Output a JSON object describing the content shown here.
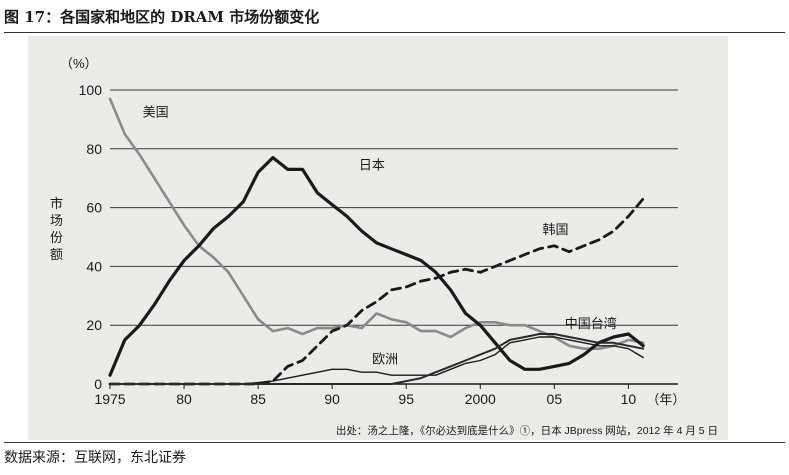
{
  "header": {
    "title": "图 17：各国家和地区的 DRAM 市场份额变化"
  },
  "footer": {
    "source": "数据来源：互联网，东北证券"
  },
  "chart_data": {
    "type": "line",
    "title": "",
    "ylabel": "市场份额",
    "yunit": "（%）",
    "xunit": "（年）",
    "ylim": [
      0,
      100
    ],
    "xlim": [
      1975,
      2012
    ],
    "yticks": [
      0,
      20,
      40,
      60,
      80,
      100
    ],
    "xticks": [
      {
        "value": 1975,
        "label": "1975"
      },
      {
        "value": 1980,
        "label": "80"
      },
      {
        "value": 1985,
        "label": "85"
      },
      {
        "value": 1990,
        "label": "90"
      },
      {
        "value": 1995,
        "label": "95"
      },
      {
        "value": 2000,
        "label": "2000"
      },
      {
        "value": 2005,
        "label": "05"
      },
      {
        "value": 2010,
        "label": "10"
      }
    ],
    "grid": true,
    "note": "出处：汤之上隆，《尔必达到底是什么》①，日本 JBpress 网站，2012 年 4 月 5 日",
    "series": [
      {
        "name": "美国",
        "style": "gray",
        "color": "#8a8a8a",
        "points": [
          [
            1975,
            97
          ],
          [
            1976,
            85
          ],
          [
            1977,
            78
          ],
          [
            1978,
            70
          ],
          [
            1979,
            62
          ],
          [
            1980,
            54
          ],
          [
            1981,
            47
          ],
          [
            1982,
            43
          ],
          [
            1983,
            38
          ],
          [
            1984,
            30
          ],
          [
            1985,
            22
          ],
          [
            1986,
            18
          ],
          [
            1987,
            19
          ],
          [
            1988,
            17
          ],
          [
            1989,
            19
          ],
          [
            1990,
            19
          ],
          [
            1991,
            20
          ],
          [
            1992,
            19
          ],
          [
            1993,
            24
          ],
          [
            1994,
            22
          ],
          [
            1995,
            21
          ],
          [
            1996,
            18
          ],
          [
            1997,
            18
          ],
          [
            1998,
            16
          ],
          [
            1999,
            19
          ],
          [
            2000,
            21
          ],
          [
            2001,
            21
          ],
          [
            2002,
            20
          ],
          [
            2003,
            20
          ],
          [
            2004,
            18
          ],
          [
            2005,
            16
          ],
          [
            2006,
            13
          ],
          [
            2007,
            12
          ],
          [
            2008,
            12
          ],
          [
            2009,
            13
          ],
          [
            2010,
            15
          ],
          [
            2011,
            14
          ]
        ]
      },
      {
        "name": "日本",
        "style": "thick",
        "color": "#1a1a1a",
        "points": [
          [
            1975,
            3
          ],
          [
            1976,
            15
          ],
          [
            1977,
            20
          ],
          [
            1978,
            27
          ],
          [
            1979,
            35
          ],
          [
            1980,
            42
          ],
          [
            1981,
            47
          ],
          [
            1982,
            53
          ],
          [
            1983,
            57
          ],
          [
            1984,
            62
          ],
          [
            1985,
            72
          ],
          [
            1986,
            77
          ],
          [
            1987,
            73
          ],
          [
            1988,
            73
          ],
          [
            1989,
            65
          ],
          [
            1990,
            61
          ],
          [
            1991,
            57
          ],
          [
            1992,
            52
          ],
          [
            1993,
            48
          ],
          [
            1994,
            46
          ],
          [
            1995,
            44
          ],
          [
            1996,
            42
          ],
          [
            1997,
            38
          ],
          [
            1998,
            32
          ],
          [
            1999,
            24
          ],
          [
            2000,
            20
          ],
          [
            2001,
            14
          ],
          [
            2002,
            8
          ],
          [
            2003,
            5
          ],
          [
            2004,
            5
          ],
          [
            2005,
            6
          ],
          [
            2006,
            7
          ],
          [
            2007,
            10
          ],
          [
            2008,
            14
          ],
          [
            2009,
            16
          ],
          [
            2010,
            17
          ],
          [
            2011,
            13
          ]
        ]
      },
      {
        "name": "韩国",
        "style": "dashed",
        "color": "#1a1a1a",
        "points": [
          [
            1975,
            0
          ],
          [
            1980,
            0
          ],
          [
            1985,
            0
          ],
          [
            1986,
            1
          ],
          [
            1987,
            6
          ],
          [
            1988,
            8
          ],
          [
            1989,
            13
          ],
          [
            1990,
            18
          ],
          [
            1991,
            20
          ],
          [
            1992,
            25
          ],
          [
            1993,
            28
          ],
          [
            1994,
            32
          ],
          [
            1995,
            33
          ],
          [
            1996,
            35
          ],
          [
            1997,
            36
          ],
          [
            1998,
            38
          ],
          [
            1999,
            39
          ],
          [
            2000,
            38
          ],
          [
            2001,
            40
          ],
          [
            2002,
            42
          ],
          [
            2003,
            44
          ],
          [
            2004,
            46
          ],
          [
            2005,
            47
          ],
          [
            2006,
            45
          ],
          [
            2007,
            47
          ],
          [
            2008,
            49
          ],
          [
            2009,
            52
          ],
          [
            2010,
            57
          ],
          [
            2011,
            63
          ]
        ]
      },
      {
        "name": "欧洲",
        "style": "thin",
        "color": "#1a1a1a",
        "points": [
          [
            1975,
            0
          ],
          [
            1984,
            0
          ],
          [
            1986,
            1
          ],
          [
            1988,
            3
          ],
          [
            1990,
            5
          ],
          [
            1991,
            5
          ],
          [
            1992,
            4
          ],
          [
            1993,
            4
          ],
          [
            1994,
            3
          ],
          [
            1995,
            3
          ],
          [
            1996,
            3
          ],
          [
            1997,
            3
          ],
          [
            1998,
            5
          ],
          [
            1999,
            7
          ],
          [
            2000,
            8
          ],
          [
            2001,
            10
          ],
          [
            2002,
            14
          ],
          [
            2003,
            15
          ],
          [
            2004,
            16
          ],
          [
            2005,
            16
          ],
          [
            2006,
            15
          ],
          [
            2007,
            14
          ],
          [
            2008,
            13
          ],
          [
            2009,
            13
          ],
          [
            2010,
            12
          ],
          [
            2011,
            9
          ]
        ]
      },
      {
        "name": "中国台湾",
        "style": "medium",
        "color": "#2a2a2a",
        "points": [
          [
            1975,
            0
          ],
          [
            1994,
            0
          ],
          [
            1995,
            1
          ],
          [
            1996,
            2
          ],
          [
            1997,
            4
          ],
          [
            1998,
            6
          ],
          [
            1999,
            8
          ],
          [
            2000,
            10
          ],
          [
            2001,
            12
          ],
          [
            2002,
            15
          ],
          [
            2003,
            16
          ],
          [
            2004,
            17
          ],
          [
            2005,
            17
          ],
          [
            2006,
            16
          ],
          [
            2007,
            15
          ],
          [
            2008,
            14
          ],
          [
            2009,
            14
          ],
          [
            2010,
            13
          ],
          [
            2011,
            12
          ]
        ]
      }
    ],
    "labels": [
      {
        "series": "美国",
        "x": 1977.2,
        "y": 91
      },
      {
        "series": "日本",
        "x": 1991.8,
        "y": 73
      },
      {
        "series": "韩国",
        "x": 2004.2,
        "y": 51
      },
      {
        "series": "欧洲",
        "x": 1992.7,
        "y": 7
      },
      {
        "series": "中国台湾",
        "x": 2005.7,
        "y": 19
      }
    ]
  }
}
